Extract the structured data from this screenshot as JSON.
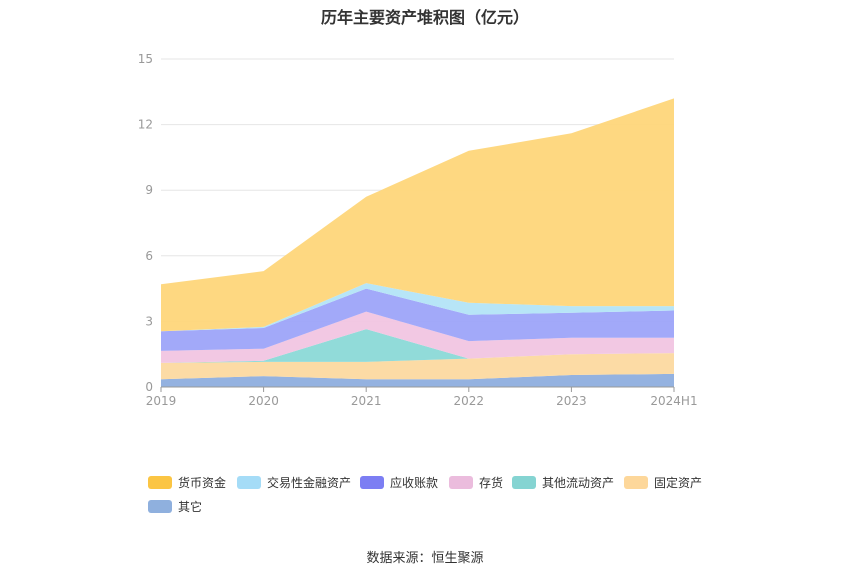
{
  "chart_data": {
    "type": "area",
    "stacked": true,
    "title": "历年主要资产堆积图（亿元）",
    "categories": [
      "2019",
      "2020",
      "2021",
      "2022",
      "2023",
      "2024H1"
    ],
    "ylim": [
      0,
      15
    ],
    "yticks": [
      0,
      3,
      6,
      9,
      12,
      15
    ],
    "grid": true,
    "legend_position": "bottom",
    "series": [
      {
        "name": "其它",
        "color": "#8eaede",
        "values": [
          0.35,
          0.5,
          0.35,
          0.35,
          0.55,
          0.6
        ]
      },
      {
        "name": "固定资产",
        "color": "#fcd9a0",
        "values": [
          0.75,
          0.65,
          0.8,
          0.95,
          0.95,
          0.95
        ]
      },
      {
        "name": "其他流动资产",
        "color": "#8bd9d7",
        "values": [
          0.0,
          0.05,
          1.5,
          0.0,
          0.0,
          0.0
        ]
      },
      {
        "name": "存货",
        "color": "#f1c5e2",
        "values": [
          0.55,
          0.55,
          0.8,
          0.8,
          0.75,
          0.7
        ]
      },
      {
        "name": "应收账款",
        "color": "#9da4f9",
        "values": [
          0.9,
          0.95,
          1.05,
          1.2,
          1.15,
          1.25
        ]
      },
      {
        "name": "交易性金融资产",
        "color": "#b3e4f7",
        "values": [
          0.0,
          0.05,
          0.25,
          0.55,
          0.3,
          0.2
        ]
      },
      {
        "name": "货币资金",
        "color": "#fed67a",
        "values": [
          2.15,
          2.55,
          3.95,
          6.95,
          7.9,
          9.5
        ]
      }
    ]
  },
  "legend": [
    {
      "label": "货币资金",
      "color": "#fbc543"
    },
    {
      "label": "交易性金融资产",
      "color": "#a5dcf7"
    },
    {
      "label": "应收账款",
      "color": "#7c7ef3"
    },
    {
      "label": "存货",
      "color": "#ebbcdd"
    },
    {
      "label": "其他流动资产",
      "color": "#85d4d2"
    },
    {
      "label": "固定资产",
      "color": "#fdd79a"
    },
    {
      "label": "其它",
      "color": "#8fb0de"
    }
  ],
  "source": "数据来源：恒生聚源"
}
